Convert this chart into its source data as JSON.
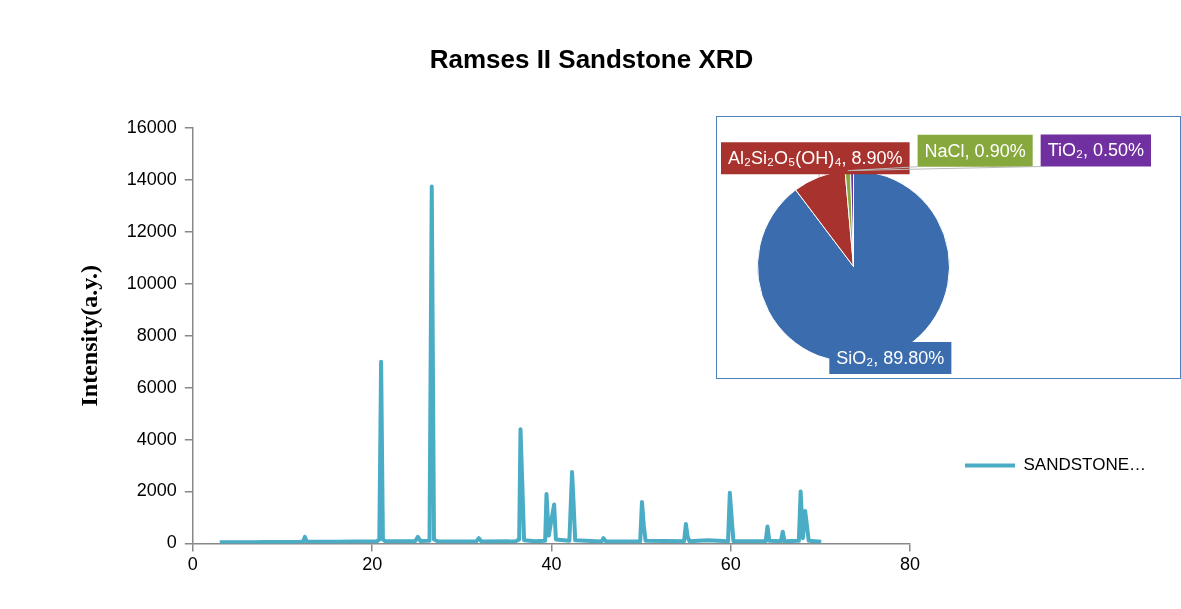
{
  "chart_data": [
    {
      "type": "line",
      "title": "Ramses II Sandstone XRD",
      "ylabel": "Intensity(a.y.)",
      "xlim": [
        0,
        80
      ],
      "xticks": [
        0,
        20,
        40,
        60,
        80
      ],
      "ylim": [
        0,
        16000
      ],
      "yticks": [
        0,
        2000,
        4000,
        6000,
        8000,
        10000,
        12000,
        14000,
        16000
      ],
      "legend": "right",
      "series": [
        {
          "name": "SANDSTONE…",
          "color": "#4bacc6",
          "x": [
            3,
            8,
            12,
            12.3,
            12.5,
            12.7,
            16,
            20.5,
            20.8,
            21,
            21.2,
            21.5,
            24.8,
            25.1,
            25.4,
            26.4,
            26.65,
            26.9,
            27.3,
            31.6,
            31.9,
            32.2,
            36,
            36.4,
            36.55,
            36.75,
            36.95,
            38.2,
            39.3,
            39.45,
            39.7,
            40.3,
            40.5,
            42,
            42.3,
            42.45,
            42.65,
            45.6,
            45.8,
            46.1,
            49.9,
            50.1,
            50.3,
            50.5,
            54.8,
            55,
            55.2,
            55.4,
            57.4,
            59.7,
            59.9,
            60.1,
            60.3,
            63.9,
            64.1,
            64.3,
            65.6,
            65.8,
            66,
            67.6,
            67.8,
            68.05,
            68.3,
            68.5,
            68.7,
            70.1
          ],
          "values": [
            40,
            50,
            60,
            70,
            250,
            70,
            60,
            80,
            150,
            7000,
            150,
            80,
            80,
            250,
            90,
            100,
            13750,
            150,
            80,
            70,
            200,
            70,
            80,
            150,
            4400,
            2300,
            120,
            80,
            100,
            1900,
            300,
            1500,
            150,
            100,
            2750,
            1700,
            120,
            70,
            200,
            70,
            80,
            1600,
            700,
            100,
            80,
            750,
            250,
            80,
            120,
            80,
            1950,
            1000,
            90,
            80,
            650,
            100,
            80,
            450,
            80,
            100,
            2000,
            200,
            1250,
            700,
            100,
            60
          ]
        }
      ]
    },
    {
      "type": "pie",
      "categories": [
        "SiO₂",
        "Al₂Si₂O₅(OH)₄",
        "NaCl",
        "TiO₂"
      ],
      "values": [
        89.8,
        8.9,
        0.9,
        0.5
      ],
      "colors": [
        "#3a6cae",
        "#a8322d",
        "#86a83c",
        "#7030a0"
      ],
      "value_labels": [
        "89.80%",
        "8.90%",
        "0.90%",
        "0.50%"
      ]
    }
  ]
}
